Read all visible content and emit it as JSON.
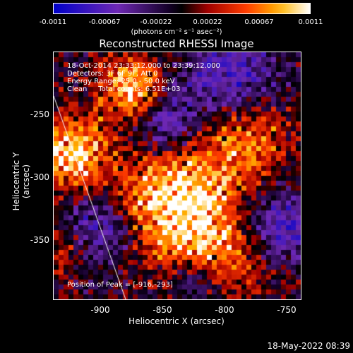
{
  "colorbar": {
    "ticks": [
      "-0.0011",
      "-0.00067",
      "-0.00022",
      "0.00022",
      "0.00067",
      "0.0011"
    ],
    "units": "(photons cm⁻² s⁻¹ asec⁻²)"
  },
  "title": "Reconstructed RHESSI Image",
  "info": {
    "time": "18-Oct-2014 23:33:12.000 to 23:39:12.000",
    "detectors": "Detectors: 3F 6F 9F, Att 0",
    "energy": "Energy Range: 25.0 - 50.0 keV",
    "clean": "Clean     Total counts: 6.51E+03"
  },
  "peak": "Position of Peak = [-916,-293]",
  "axes": {
    "xlabel": "Heliocentric X (arcsec)",
    "ylabel": "Heliocentric Y (arcsec)",
    "xticks": [
      "-900",
      "-850",
      "-800",
      "-750"
    ],
    "yticks": [
      "-250",
      "-300",
      "-350"
    ]
  },
  "timestamp": "18-May-2022 08:39",
  "colors": {
    "background": "#000000",
    "frame": "#ffffff",
    "limb": "#ffffff"
  }
}
